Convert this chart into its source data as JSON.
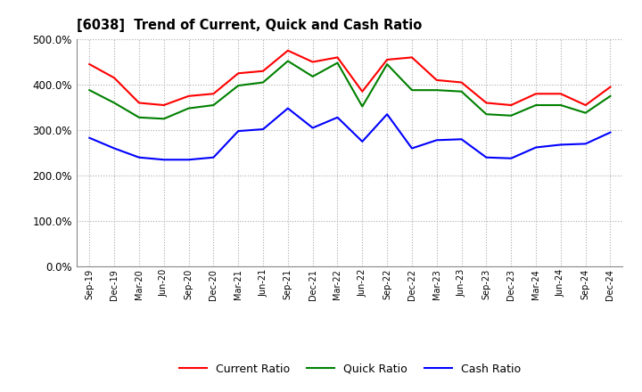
{
  "title": "[6038]  Trend of Current, Quick and Cash Ratio",
  "labels": [
    "Sep-19",
    "Dec-19",
    "Mar-20",
    "Jun-20",
    "Sep-20",
    "Dec-20",
    "Mar-21",
    "Jun-21",
    "Sep-21",
    "Dec-21",
    "Mar-22",
    "Jun-22",
    "Sep-22",
    "Dec-22",
    "Mar-23",
    "Jun-23",
    "Sep-23",
    "Dec-23",
    "Mar-24",
    "Jun-24",
    "Sep-24",
    "Dec-24"
  ],
  "current_ratio": [
    4.45,
    4.15,
    3.6,
    3.55,
    3.75,
    3.8,
    4.25,
    4.3,
    4.75,
    4.5,
    4.6,
    3.85,
    4.55,
    4.6,
    4.1,
    4.05,
    3.6,
    3.55,
    3.8,
    3.8,
    3.55,
    3.95
  ],
  "quick_ratio": [
    3.88,
    3.6,
    3.28,
    3.25,
    3.48,
    3.55,
    3.98,
    4.05,
    4.52,
    4.18,
    4.48,
    3.52,
    4.45,
    3.88,
    3.88,
    3.85,
    3.35,
    3.32,
    3.55,
    3.55,
    3.38,
    3.75
  ],
  "cash_ratio": [
    2.83,
    2.6,
    2.4,
    2.35,
    2.35,
    2.4,
    2.98,
    3.02,
    3.48,
    3.05,
    3.28,
    2.75,
    3.35,
    2.6,
    2.78,
    2.8,
    2.4,
    2.38,
    2.62,
    2.68,
    2.7,
    2.95
  ],
  "ylim": [
    0.0,
    5.0
  ],
  "yticks": [
    0.0,
    1.0,
    2.0,
    3.0,
    4.0,
    5.0
  ],
  "current_color": "#FF0000",
  "quick_color": "#008000",
  "cash_color": "#0000FF",
  "background_color": "#FFFFFF",
  "plot_bg_color": "#FFFFFF",
  "grid_color": "#AAAAAA",
  "legend_labels": [
    "Current Ratio",
    "Quick Ratio",
    "Cash Ratio"
  ]
}
